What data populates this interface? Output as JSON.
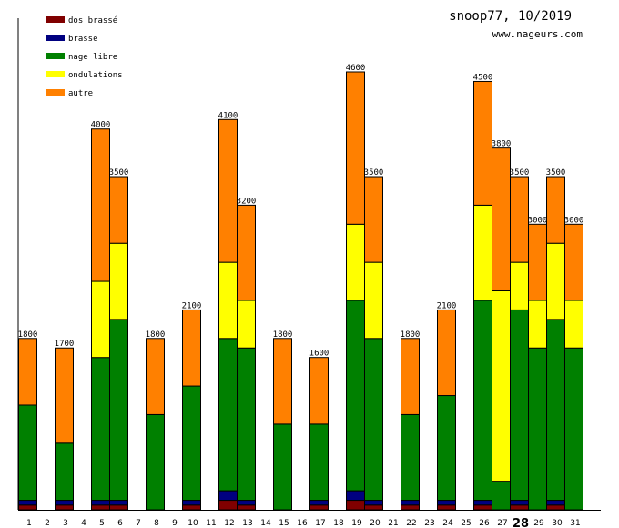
{
  "chart_data": {
    "type": "bar",
    "stacked": true,
    "title": "snoop77, 10/2019",
    "subtitle": "www.nageurs.com",
    "xlabel": "",
    "ylabel": "",
    "ylim": [
      0,
      5000
    ],
    "highlight_category": "28",
    "legend_placement": "top-left",
    "categories": [
      "1",
      "2",
      "3",
      "4",
      "5",
      "6",
      "7",
      "8",
      "9",
      "10",
      "11",
      "12",
      "13",
      "14",
      "15",
      "16",
      "17",
      "18",
      "19",
      "20",
      "21",
      "22",
      "23",
      "24",
      "25",
      "26",
      "27",
      "28",
      "29",
      "30",
      "31"
    ],
    "series": [
      {
        "name": "dos brassé",
        "color": "#800000",
        "values": [
          50,
          0,
          50,
          0,
          50,
          50,
          0,
          0,
          0,
          50,
          0,
          100,
          50,
          0,
          0,
          0,
          50,
          0,
          100,
          50,
          0,
          50,
          0,
          50,
          0,
          50,
          0,
          50,
          0,
          50,
          0
        ]
      },
      {
        "name": "brasse",
        "color": "#000080",
        "values": [
          50,
          0,
          50,
          0,
          50,
          50,
          0,
          0,
          0,
          50,
          0,
          100,
          50,
          0,
          0,
          0,
          50,
          0,
          100,
          50,
          0,
          50,
          0,
          50,
          0,
          50,
          0,
          50,
          0,
          50,
          0
        ]
      },
      {
        "name": "nage libre",
        "color": "#008000",
        "values": [
          1000,
          0,
          600,
          0,
          1500,
          1900,
          0,
          1000,
          0,
          1200,
          0,
          1600,
          1600,
          0,
          900,
          0,
          800,
          0,
          2000,
          1700,
          0,
          900,
          0,
          1100,
          0,
          2100,
          300,
          2000,
          1700,
          1900,
          1700
        ]
      },
      {
        "name": "ondulations",
        "color": "#ffff00",
        "values": [
          0,
          0,
          0,
          0,
          800,
          800,
          0,
          0,
          0,
          0,
          0,
          800,
          500,
          0,
          0,
          0,
          0,
          0,
          800,
          800,
          0,
          0,
          0,
          0,
          0,
          1000,
          2000,
          500,
          500,
          800,
          500
        ]
      },
      {
        "name": "autre",
        "color": "#ff8000",
        "values": [
          700,
          0,
          1000,
          0,
          1600,
          700,
          0,
          800,
          0,
          800,
          0,
          1500,
          1000,
          0,
          900,
          0,
          700,
          0,
          1600,
          900,
          0,
          800,
          0,
          900,
          0,
          1300,
          1500,
          900,
          800,
          700,
          800
        ]
      }
    ],
    "totals": [
      "1800",
      "",
      "1700",
      "",
      "4000",
      "3500",
      "",
      "1800",
      "",
      "2100",
      "",
      "4100",
      "3200",
      "",
      "1800",
      "",
      "1600",
      "",
      "4600",
      "3500",
      "",
      "1800",
      "",
      "2100",
      "",
      "4500",
      "3800",
      "3500",
      "3000",
      "3500",
      "3000"
    ]
  }
}
